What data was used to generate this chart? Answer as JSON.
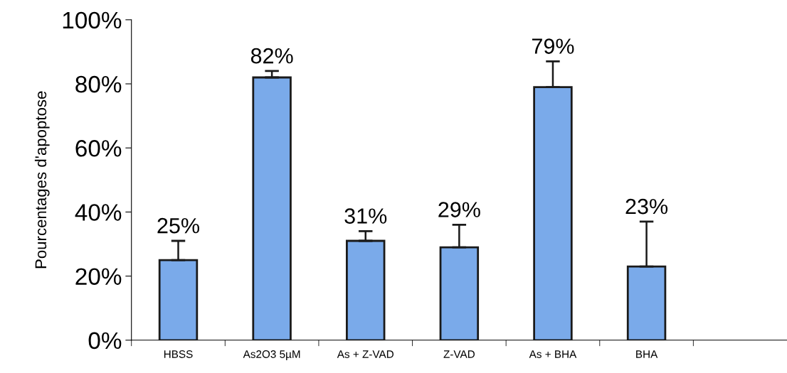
{
  "chart_data": {
    "type": "bar",
    "ylabel": "Pourcentages d'apoptose",
    "categories": [
      "HBSS",
      "As2O3 5µM",
      "As + Z-VAD",
      "Z-VAD",
      "As + BHA",
      "BHA",
      null
    ],
    "values": [
      25,
      82,
      31,
      29,
      79,
      23,
      null
    ],
    "value_labels": [
      "25%",
      "82%",
      "31%",
      "29%",
      "79%",
      "23%",
      null
    ],
    "errors": [
      [
        25,
        31
      ],
      [
        82,
        84
      ],
      [
        31,
        34
      ],
      [
        29,
        36
      ],
      [
        79,
        87
      ],
      [
        23,
        37
      ],
      null
    ],
    "color": "#7aaaea",
    "ylim": [
      0,
      100
    ],
    "yticks": [
      {
        "value": 0,
        "label": "0%"
      },
      {
        "value": 20,
        "label": "20%"
      },
      {
        "value": 40,
        "label": "40%"
      },
      {
        "value": 60,
        "label": "60%"
      },
      {
        "value": 80,
        "label": "80%"
      },
      {
        "value": 100,
        "label": "100%"
      }
    ],
    "grid": false,
    "legend": false
  }
}
